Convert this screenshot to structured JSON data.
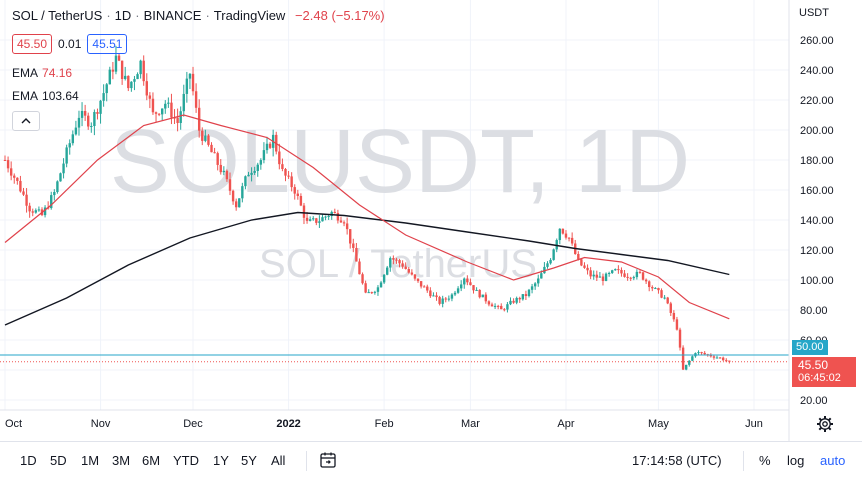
{
  "legend": {
    "symbol": "SOL / TetherUS",
    "interval": "1D",
    "exchange": "BINANCE",
    "platform": "TradingView",
    "change": "−2.48 (−5.17%)"
  },
  "bid_ask": {
    "bid": "45.50",
    "spread": "0.01",
    "ask": "45.51"
  },
  "indicators": [
    {
      "name": "EMA",
      "value": "74.16",
      "color": "#e0424b"
    },
    {
      "name": "EMA",
      "value": "103.64",
      "color": "#131722"
    }
  ],
  "collapse_icon": "chevron-up-icon",
  "watermark": {
    "main": "SOLUSDT, 1D",
    "sub": "SOL / TetherUS"
  },
  "currency_label": "USDT",
  "price_labels": {
    "line_value": "50.00",
    "last_price": "45.50",
    "countdown": "06:45:02"
  },
  "colors": {
    "up": "#26a69a",
    "down": "#ef5350",
    "ema_fast": "#e0424b",
    "ema_slow": "#131722",
    "line": "#26a6c8"
  },
  "time_ranges": [
    "1D",
    "5D",
    "1M",
    "3M",
    "6M",
    "YTD",
    "1Y",
    "5Y",
    "All"
  ],
  "compare_icon": "date-range-icon",
  "clock": "17:14:58 (UTC)",
  "scale_options": {
    "percent": "%",
    "log": "log",
    "auto": "auto"
  },
  "settings_icon": "gear-icon",
  "chart_data": {
    "type": "candlestick",
    "ylim": [
      20,
      270
    ],
    "y_ticks": [
      20,
      40,
      60,
      80,
      100,
      120,
      140,
      160,
      180,
      200,
      220,
      240,
      260
    ],
    "y_tick_labels": [
      "20.00",
      "40.00",
      "60.00",
      "80.00",
      "100.00",
      "120.00",
      "140.00",
      "160.00",
      "180.00",
      "200.00",
      "220.00",
      "240.00",
      "260.00"
    ],
    "x_labels": [
      "Oct",
      "Nov",
      "Dec",
      "2022",
      "Feb",
      "Mar",
      "Apr",
      "May",
      "Jun"
    ],
    "x_label_days": [
      0,
      31,
      61,
      92,
      123,
      151,
      182,
      212,
      243
    ],
    "x_range_days": [
      0,
      270
    ],
    "horizontal_line": 50.0,
    "last_price": 45.5,
    "close_anchors": [
      {
        "day": 0,
        "close": 180
      },
      {
        "day": 4,
        "close": 165
      },
      {
        "day": 8,
        "close": 148
      },
      {
        "day": 12,
        "close": 143
      },
      {
        "day": 16,
        "close": 158
      },
      {
        "day": 20,
        "close": 185
      },
      {
        "day": 24,
        "close": 210
      },
      {
        "day": 28,
        "close": 205
      },
      {
        "day": 32,
        "close": 225
      },
      {
        "day": 36,
        "close": 248
      },
      {
        "day": 40,
        "close": 228
      },
      {
        "day": 44,
        "close": 245
      },
      {
        "day": 48,
        "close": 210
      },
      {
        "day": 52,
        "close": 218
      },
      {
        "day": 56,
        "close": 205
      },
      {
        "day": 60,
        "close": 238
      },
      {
        "day": 63,
        "close": 200
      },
      {
        "day": 67,
        "close": 185
      },
      {
        "day": 71,
        "close": 170
      },
      {
        "day": 75,
        "close": 150
      },
      {
        "day": 79,
        "close": 172
      },
      {
        "day": 83,
        "close": 180
      },
      {
        "day": 87,
        "close": 195
      },
      {
        "day": 90,
        "close": 172
      },
      {
        "day": 94,
        "close": 160
      },
      {
        "day": 98,
        "close": 138
      },
      {
        "day": 102,
        "close": 140
      },
      {
        "day": 106,
        "close": 145
      },
      {
        "day": 110,
        "close": 140
      },
      {
        "day": 114,
        "close": 112
      },
      {
        "day": 117,
        "close": 90
      },
      {
        "day": 121,
        "close": 95
      },
      {
        "day": 125,
        "close": 115
      },
      {
        "day": 129,
        "close": 110
      },
      {
        "day": 133,
        "close": 100
      },
      {
        "day": 137,
        "close": 93
      },
      {
        "day": 141,
        "close": 85
      },
      {
        "day": 145,
        "close": 90
      },
      {
        "day": 149,
        "close": 102
      },
      {
        "day": 153,
        "close": 92
      },
      {
        "day": 157,
        "close": 85
      },
      {
        "day": 161,
        "close": 80
      },
      {
        "day": 165,
        "close": 86
      },
      {
        "day": 169,
        "close": 90
      },
      {
        "day": 173,
        "close": 100
      },
      {
        "day": 177,
        "close": 115
      },
      {
        "day": 180,
        "close": 135
      },
      {
        "day": 183,
        "close": 128
      },
      {
        "day": 186,
        "close": 112
      },
      {
        "day": 190,
        "close": 103
      },
      {
        "day": 194,
        "close": 101
      },
      {
        "day": 198,
        "close": 106
      },
      {
        "day": 202,
        "close": 103
      },
      {
        "day": 206,
        "close": 104
      },
      {
        "day": 210,
        "close": 95
      },
      {
        "day": 214,
        "close": 88
      },
      {
        "day": 218,
        "close": 68
      },
      {
        "day": 220,
        "close": 40
      },
      {
        "day": 224,
        "close": 52
      },
      {
        "day": 228,
        "close": 50
      },
      {
        "day": 232,
        "close": 48
      },
      {
        "day": 235,
        "close": 45.5
      }
    ],
    "ema_fast_points": [
      {
        "day": 0,
        "value": 125
      },
      {
        "day": 15,
        "value": 150
      },
      {
        "day": 30,
        "value": 180
      },
      {
        "day": 45,
        "value": 203
      },
      {
        "day": 58,
        "value": 210
      },
      {
        "day": 70,
        "value": 203
      },
      {
        "day": 85,
        "value": 195
      },
      {
        "day": 100,
        "value": 175
      },
      {
        "day": 115,
        "value": 150
      },
      {
        "day": 130,
        "value": 130
      },
      {
        "day": 150,
        "value": 112
      },
      {
        "day": 165,
        "value": 100
      },
      {
        "day": 178,
        "value": 108
      },
      {
        "day": 188,
        "value": 115
      },
      {
        "day": 200,
        "value": 112
      },
      {
        "day": 212,
        "value": 102
      },
      {
        "day": 222,
        "value": 85
      },
      {
        "day": 235,
        "value": 74.16
      }
    ],
    "ema_slow_points": [
      {
        "day": 0,
        "value": 70
      },
      {
        "day": 20,
        "value": 88
      },
      {
        "day": 40,
        "value": 110
      },
      {
        "day": 60,
        "value": 128
      },
      {
        "day": 80,
        "value": 140
      },
      {
        "day": 95,
        "value": 145
      },
      {
        "day": 110,
        "value": 143
      },
      {
        "day": 130,
        "value": 138
      },
      {
        "day": 150,
        "value": 132
      },
      {
        "day": 170,
        "value": 126
      },
      {
        "day": 185,
        "value": 121
      },
      {
        "day": 200,
        "value": 117
      },
      {
        "day": 215,
        "value": 113
      },
      {
        "day": 235,
        "value": 103.64
      }
    ]
  }
}
